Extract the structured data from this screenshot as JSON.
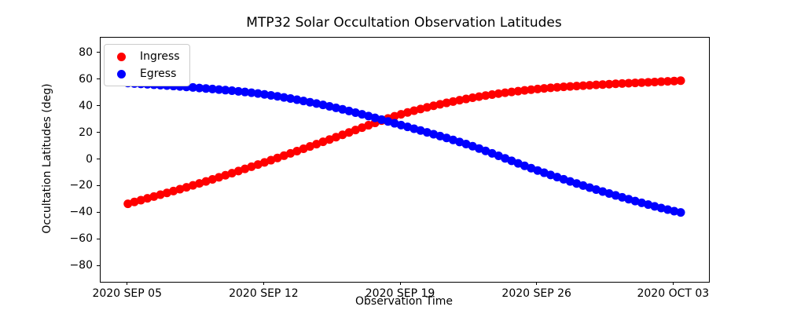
{
  "chart_data": {
    "type": "scatter",
    "title": "MTP32 Solar Occultation Observation Latitudes",
    "xlabel": "Observation Time",
    "ylabel": "Occultation Latitudes (deg)",
    "grid": false,
    "background_color": "#ffffff",
    "x_unit": "days since 2020-09-05",
    "xlim": [
      -1.4,
      29.8
    ],
    "ylim": [
      -91.5,
      91.5
    ],
    "x_ticks": [
      {
        "day": 0,
        "label": "2020 SEP 05"
      },
      {
        "day": 7,
        "label": "2020 SEP 12"
      },
      {
        "day": 14,
        "label": "2020 SEP 19"
      },
      {
        "day": 21,
        "label": "2020 SEP 26"
      },
      {
        "day": 28,
        "label": "2020 OCT 03"
      }
    ],
    "y_ticks": [
      {
        "value": 80,
        "label": "80"
      },
      {
        "value": 60,
        "label": "60"
      },
      {
        "value": 40,
        "label": "40"
      },
      {
        "value": 20,
        "label": "20"
      },
      {
        "value": 0,
        "label": "0"
      },
      {
        "value": -20,
        "label": "−20"
      },
      {
        "value": -40,
        "label": "−40"
      },
      {
        "value": -60,
        "label": "−60"
      },
      {
        "value": -80,
        "label": "−80"
      }
    ],
    "legend": {
      "position": "upper left",
      "entries": [
        {
          "name": "Ingress",
          "color": "#ff0000"
        },
        {
          "name": "Egress",
          "color": "#0000ff"
        }
      ]
    },
    "series": [
      {
        "name": "Ingress",
        "color": "#ff0000",
        "marker": "circle",
        "n_samples": 86,
        "t_range": [
          0,
          28.35
        ],
        "control_points_day_lat": [
          [
            0,
            -33
          ],
          [
            3.5,
            -18.5
          ],
          [
            7,
            -2
          ],
          [
            10.5,
            16
          ],
          [
            14,
            34
          ],
          [
            17.5,
            46
          ],
          [
            21,
            53
          ],
          [
            24.5,
            56.5
          ],
          [
            28,
            59
          ],
          [
            28.35,
            59.3
          ]
        ]
      },
      {
        "name": "Egress",
        "color": "#0000ff",
        "marker": "circle",
        "n_samples": 86,
        "t_range": [
          0,
          28.35
        ],
        "control_points_day_lat": [
          [
            0,
            57.5
          ],
          [
            3.5,
            54
          ],
          [
            7,
            49
          ],
          [
            10.5,
            39.5
          ],
          [
            14,
            26
          ],
          [
            17.5,
            11
          ],
          [
            21,
            -8
          ],
          [
            24.5,
            -24.5
          ],
          [
            28,
            -38.5
          ],
          [
            28.35,
            -39.5
          ]
        ]
      }
    ]
  }
}
